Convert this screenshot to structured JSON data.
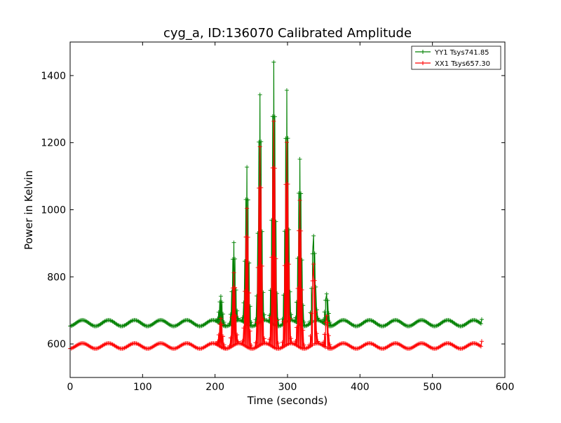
{
  "chart_data": {
    "type": "line",
    "title": "cyg_a, ID:136070 Calibrated Amplitude",
    "xlabel": "Time (seconds)",
    "ylabel": "Power in Kelvin",
    "xlim": [
      0,
      600
    ],
    "ylim": [
      500,
      1500
    ],
    "xticks": [
      0,
      100,
      200,
      300,
      400,
      500,
      600
    ],
    "yticks": [
      600,
      800,
      1000,
      1200,
      1400
    ],
    "grid": false,
    "legend_position": "top-right",
    "marker": "plus",
    "series": [
      {
        "name": "YY1 Tsys741.85",
        "color": "#008000",
        "baseline": {
          "mean": 662,
          "amplitude": 9,
          "period": 36,
          "x_start": 0,
          "x_end": 568
        },
        "peaks": [
          {
            "x": 208,
            "y": 742
          },
          {
            "x": 226,
            "y": 902
          },
          {
            "x": 244,
            "y": 1127
          },
          {
            "x": 262,
            "y": 1343
          },
          {
            "x": 281,
            "y": 1440
          },
          {
            "x": 299,
            "y": 1356
          },
          {
            "x": 317,
            "y": 1151
          },
          {
            "x": 336,
            "y": 922
          },
          {
            "x": 354,
            "y": 749
          }
        ],
        "end_point": {
          "x": 568,
          "y": 673
        }
      },
      {
        "name": "XX1 Tsys657.30",
        "color": "#ff0000",
        "baseline": {
          "mean": 594,
          "amplitude": 8,
          "period": 36,
          "x_start": 0,
          "x_end": 568
        },
        "peaks": [
          {
            "x": 208,
            "y": 676
          },
          {
            "x": 226,
            "y": 812
          },
          {
            "x": 244,
            "y": 1004
          },
          {
            "x": 262,
            "y": 1188
          },
          {
            "x": 281,
            "y": 1264
          },
          {
            "x": 299,
            "y": 1201
          },
          {
            "x": 317,
            "y": 1028
          },
          {
            "x": 336,
            "y": 838
          },
          {
            "x": 354,
            "y": 684
          }
        ],
        "end_point": {
          "x": 568,
          "y": 608
        }
      }
    ]
  }
}
